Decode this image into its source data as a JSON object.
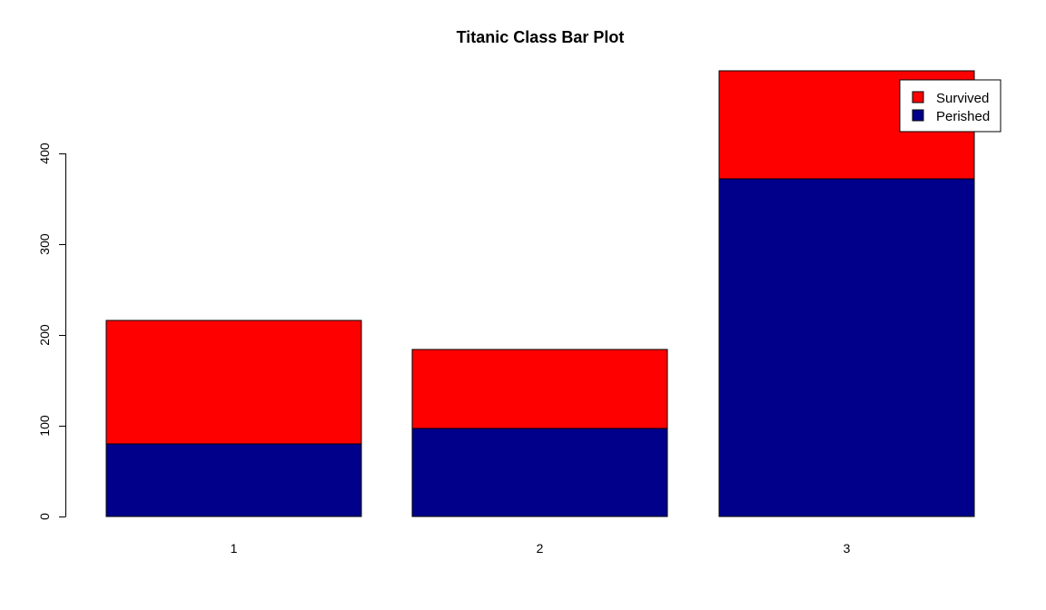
{
  "chart_data": {
    "type": "bar",
    "stacked": true,
    "title": "Titanic Class Bar Plot",
    "xlabel": "",
    "ylabel": "",
    "categories": [
      "1",
      "2",
      "3"
    ],
    "series": [
      {
        "name": "Perished",
        "color": "#00008B",
        "values": [
          80,
          97,
          372
        ]
      },
      {
        "name": "Survived",
        "color": "#FF0000",
        "values": [
          136,
          87,
          119
        ]
      }
    ],
    "y_ticks": [
      "0",
      "100",
      "200",
      "300",
      "400"
    ],
    "ylim": [
      0,
      491
    ],
    "grid": false,
    "legend": {
      "placement": "top-right",
      "entries": [
        "Survived",
        "Perished"
      ],
      "colors": [
        "#FF0000",
        "#00008B"
      ]
    }
  }
}
